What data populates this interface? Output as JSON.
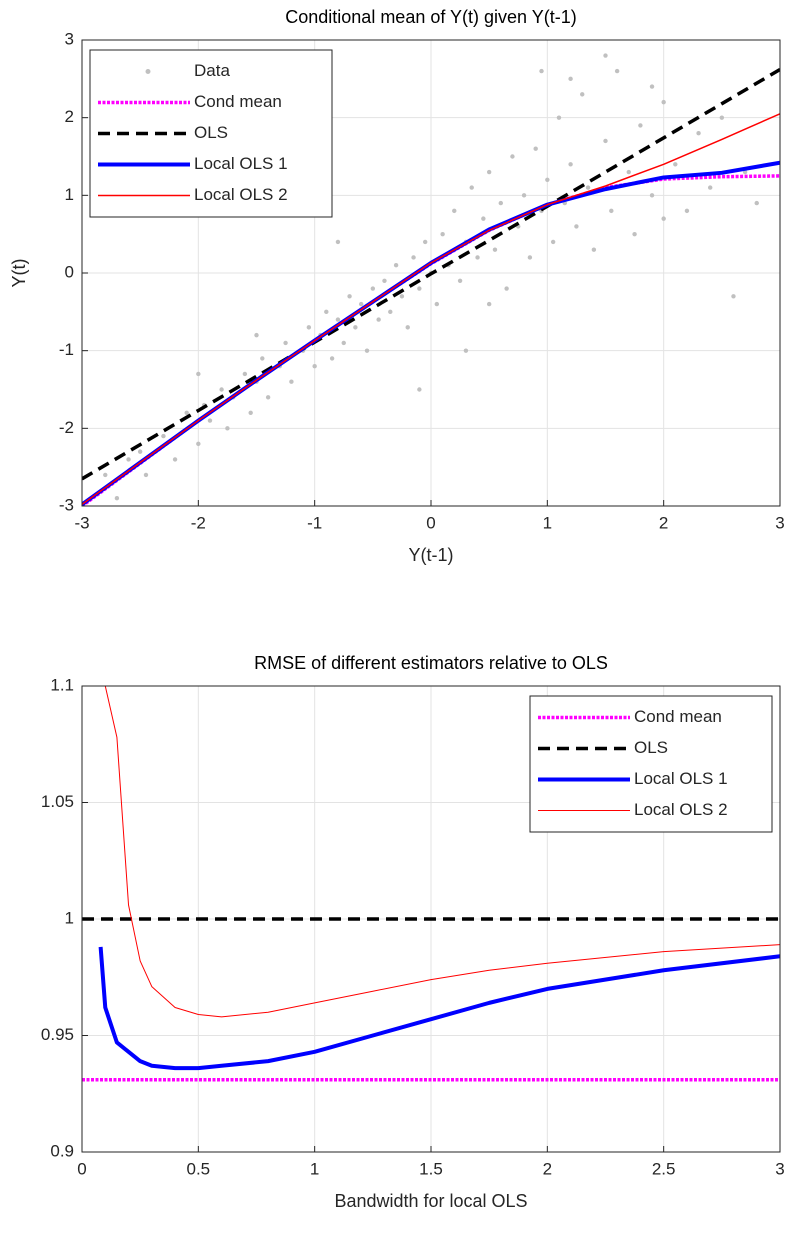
{
  "chart_data": [
    {
      "type": "line",
      "title": "Conditional mean of Y(t) given Y(t-1)",
      "xlabel": "Y(t-1)",
      "ylabel": "Y(t)",
      "xlim": [
        -3,
        3
      ],
      "ylim": [
        -3,
        3
      ],
      "xticks": [
        -3,
        -2,
        -1,
        0,
        1,
        2,
        3
      ],
      "yticks": [
        -3,
        -2,
        -1,
        0,
        1,
        2,
        3
      ],
      "grid": true,
      "legend": "northwest",
      "x": [
        -3,
        -2.5,
        -2,
        -1.5,
        -1,
        -0.5,
        0,
        0.5,
        1,
        1.5,
        2,
        2.5,
        3
      ],
      "series": [
        {
          "name": "Data",
          "color": "#c0c0c0",
          "style": "dots",
          "x": [
            -2.8,
            -2.7,
            -2.6,
            -2.5,
            -2.45,
            -2.3,
            -2.2,
            -2.1,
            -2.0,
            -1.95,
            -1.9,
            -1.8,
            -1.75,
            -1.7,
            -1.6,
            -1.55,
            -1.5,
            -1.45,
            -1.4,
            -1.3,
            -1.25,
            -1.2,
            -1.1,
            -1.05,
            -1.0,
            -0.95,
            -0.9,
            -0.85,
            -0.8,
            -0.75,
            -0.7,
            -0.65,
            -0.6,
            -0.55,
            -0.5,
            -0.45,
            -0.4,
            -0.35,
            -0.3,
            -0.25,
            -0.2,
            -0.15,
            -0.1,
            -0.05,
            0,
            0.05,
            0.1,
            0.15,
            0.2,
            0.25,
            0.3,
            0.35,
            0.4,
            0.45,
            0.5,
            0.55,
            0.6,
            0.65,
            0.7,
            0.75,
            0.8,
            0.85,
            0.9,
            0.95,
            1.0,
            1.05,
            1.1,
            1.15,
            1.2,
            1.25,
            1.3,
            1.35,
            1.4,
            1.5,
            1.55,
            1.6,
            1.7,
            1.75,
            1.8,
            1.9,
            2.0,
            2.1,
            2.2,
            2.3,
            2.4,
            2.5,
            2.6,
            2.7,
            2.8,
            0.3,
            -0.1,
            0.95,
            1.5,
            -1.5,
            -2.0,
            0.5,
            1.2,
            -0.8,
            2.0,
            1.9
          ],
          "values": [
            -2.6,
            -2.9,
            -2.4,
            -2.3,
            -2.6,
            -2.1,
            -2.4,
            -1.8,
            -2.2,
            -1.7,
            -1.9,
            -1.5,
            -2.0,
            -1.6,
            -1.3,
            -1.8,
            -1.4,
            -1.1,
            -1.6,
            -1.2,
            -0.9,
            -1.4,
            -1.0,
            -0.7,
            -1.2,
            -0.8,
            -0.5,
            -1.1,
            -0.6,
            -0.9,
            -0.3,
            -0.7,
            -0.4,
            -1.0,
            -0.2,
            -0.6,
            -0.1,
            -0.5,
            0.1,
            -0.3,
            -0.7,
            0.2,
            -0.2,
            0.4,
            0.0,
            -0.4,
            0.5,
            0.1,
            0.8,
            -0.1,
            0.4,
            1.1,
            0.2,
            0.7,
            1.3,
            0.3,
            0.9,
            -0.2,
            1.5,
            0.6,
            1.0,
            0.2,
            1.6,
            0.8,
            1.2,
            0.4,
            2.0,
            0.9,
            1.4,
            0.6,
            2.3,
            1.1,
            0.3,
            1.7,
            0.8,
            2.6,
            1.3,
            0.5,
            1.9,
            1.0,
            2.2,
            1.4,
            0.8,
            1.8,
            1.1,
            2.0,
            -0.3,
            1.3,
            0.9,
            -1.0,
            -1.5,
            2.6,
            2.8,
            -0.8,
            -1.3,
            -0.4,
            2.5,
            0.4,
            0.7,
            2.4
          ]
        },
        {
          "name": "Cond mean",
          "color": "#ff00ff",
          "style": "dotted",
          "width": 3.5,
          "values": [
            -3,
            -2.45,
            -1.9,
            -1.38,
            -0.87,
            -0.37,
            0.12,
            0.55,
            0.88,
            1.1,
            1.21,
            1.24,
            1.25
          ]
        },
        {
          "name": "OLS",
          "color": "#000000",
          "style": "dashed",
          "width": 3.5,
          "values": [
            -2.65,
            -2.21,
            -1.77,
            -1.33,
            -0.89,
            -0.45,
            -0.01,
            0.42,
            0.86,
            1.3,
            1.74,
            2.18,
            2.62
          ]
        },
        {
          "name": "Local OLS 1",
          "color": "#0000ff",
          "style": "solid",
          "width": 4,
          "values": [
            -2.98,
            -2.44,
            -1.9,
            -1.38,
            -0.87,
            -0.37,
            0.13,
            0.56,
            0.88,
            1.08,
            1.23,
            1.29,
            1.42
          ]
        },
        {
          "name": "Local OLS 2",
          "color": "#ff0000",
          "style": "solid",
          "width": 1.5,
          "values": [
            -2.98,
            -2.44,
            -1.9,
            -1.38,
            -0.87,
            -0.37,
            0.13,
            0.55,
            0.88,
            1.12,
            1.4,
            1.72,
            2.05
          ]
        }
      ]
    },
    {
      "type": "line",
      "title": "RMSE of different estimators relative to OLS",
      "xlabel": "Bandwidth for local OLS",
      "xlim": [
        0,
        3
      ],
      "ylim": [
        0.9,
        1.1
      ],
      "xticks": [
        0,
        0.5,
        1,
        1.5,
        2,
        2.5,
        3
      ],
      "yticks": [
        0.9,
        0.95,
        1,
        1.05,
        1.1
      ],
      "grid": true,
      "legend": "northeast",
      "x": [
        0,
        0.08,
        0.1,
        0.15,
        0.2,
        0.25,
        0.3,
        0.4,
        0.5,
        0.6,
        0.8,
        1,
        1.25,
        1.5,
        1.75,
        2,
        2.5,
        3
      ],
      "series": [
        {
          "name": "Cond mean",
          "color": "#ff00ff",
          "style": "dotted",
          "width": 3.5,
          "values": [
            0.931,
            0.931,
            0.931,
            0.931,
            0.931,
            0.931,
            0.931,
            0.931,
            0.931,
            0.931,
            0.931,
            0.931,
            0.931,
            0.931,
            0.931,
            0.931,
            0.931,
            0.931
          ]
        },
        {
          "name": "OLS",
          "color": "#000000",
          "style": "dashed",
          "width": 3.5,
          "values": [
            1,
            1,
            1,
            1,
            1,
            1,
            1,
            1,
            1,
            1,
            1,
            1,
            1,
            1,
            1,
            1,
            1,
            1
          ]
        },
        {
          "name": "Local OLS 1",
          "color": "#0000ff",
          "style": "solid",
          "width": 4,
          "values": [
            null,
            0.988,
            0.962,
            0.947,
            0.943,
            0.939,
            0.937,
            0.936,
            0.936,
            0.937,
            0.939,
            0.943,
            0.95,
            0.957,
            0.964,
            0.97,
            0.978,
            0.984
          ]
        },
        {
          "name": "Local OLS 2",
          "color": "#ff0000",
          "style": "solid",
          "width": 1,
          "values": [
            null,
            null,
            1.1,
            1.078,
            1.006,
            0.982,
            0.971,
            0.962,
            0.959,
            0.958,
            0.96,
            0.964,
            0.969,
            0.974,
            0.978,
            0.981,
            0.986,
            0.989
          ]
        }
      ]
    }
  ]
}
